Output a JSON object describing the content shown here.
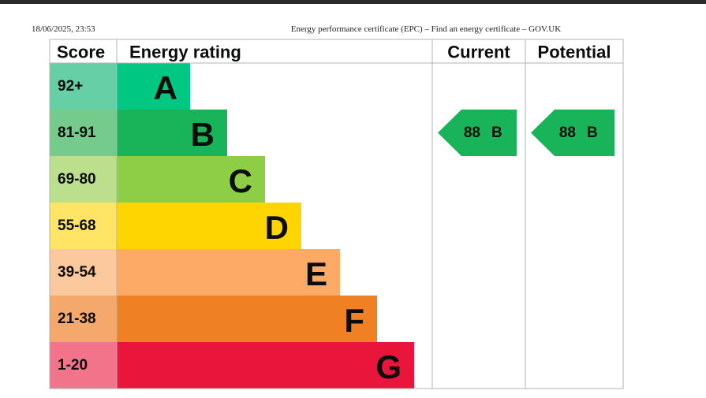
{
  "header": {
    "date": "18/06/2025, 23:53",
    "title": "Energy performance certificate (EPC) – Find an energy certificate – GOV.UK"
  },
  "table": {
    "headers": [
      "Score",
      "Energy rating",
      "Current",
      "Potential"
    ],
    "rows": [
      {
        "score": "92+",
        "letter": "A"
      },
      {
        "score": "81-91",
        "letter": "B"
      },
      {
        "score": "69-80",
        "letter": "C"
      },
      {
        "score": "55-68",
        "letter": "D"
      },
      {
        "score": "39-54",
        "letter": "E"
      },
      {
        "score": "21-38",
        "letter": "F"
      },
      {
        "score": "1-20",
        "letter": "G"
      }
    ],
    "current": {
      "score": "88",
      "band": "B"
    },
    "potential": {
      "score": "88",
      "band": "B"
    }
  }
}
